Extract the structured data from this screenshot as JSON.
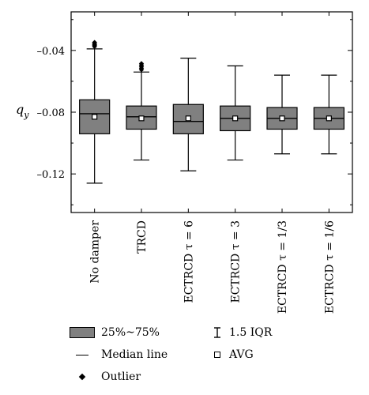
{
  "chart_data": {
    "type": "box",
    "ylabel": "q",
    "ylabel_sub": "y",
    "ylim": [
      -0.145,
      -0.015
    ],
    "yticks": [
      -0.04,
      -0.08,
      -0.12
    ],
    "ytick_labels": [
      "–0.04",
      "–0.08",
      "–0.12"
    ],
    "categories": [
      "No damper",
      "TRCD",
      "ECTRCD τ = 6",
      "ECTRCD τ = 3",
      "ECTRCD τ = 1/3",
      "ECTRCD τ = 1/6"
    ],
    "boxes": [
      {
        "whisker_low": -0.126,
        "q1": -0.094,
        "median": -0.081,
        "q3": -0.072,
        "whisker_high": -0.039,
        "mean": -0.083,
        "outliers": [
          -0.0375,
          -0.0368,
          -0.0362,
          -0.0355,
          -0.0348
        ]
      },
      {
        "whisker_low": -0.111,
        "q1": -0.091,
        "median": -0.083,
        "q3": -0.076,
        "whisker_high": -0.054,
        "mean": -0.084,
        "outliers": [
          -0.0525,
          -0.0515,
          -0.0505,
          -0.0495,
          -0.0485
        ]
      },
      {
        "whisker_low": -0.118,
        "q1": -0.094,
        "median": -0.086,
        "q3": -0.075,
        "whisker_high": -0.045,
        "mean": -0.084,
        "outliers": []
      },
      {
        "whisker_low": -0.111,
        "q1": -0.092,
        "median": -0.084,
        "q3": -0.076,
        "whisker_high": -0.05,
        "mean": -0.084,
        "outliers": []
      },
      {
        "whisker_low": -0.107,
        "q1": -0.091,
        "median": -0.084,
        "q3": -0.077,
        "whisker_high": -0.056,
        "mean": -0.084,
        "outliers": []
      },
      {
        "whisker_low": -0.107,
        "q1": -0.091,
        "median": -0.084,
        "q3": -0.077,
        "whisker_high": -0.056,
        "mean": -0.084,
        "outliers": []
      }
    ],
    "box_color": "#808080",
    "grid": false
  },
  "legend": {
    "box": "25%~75%",
    "median": "Median line",
    "outlier": "Outlier",
    "iqr": "1.5 IQR",
    "avg": "AVG"
  }
}
